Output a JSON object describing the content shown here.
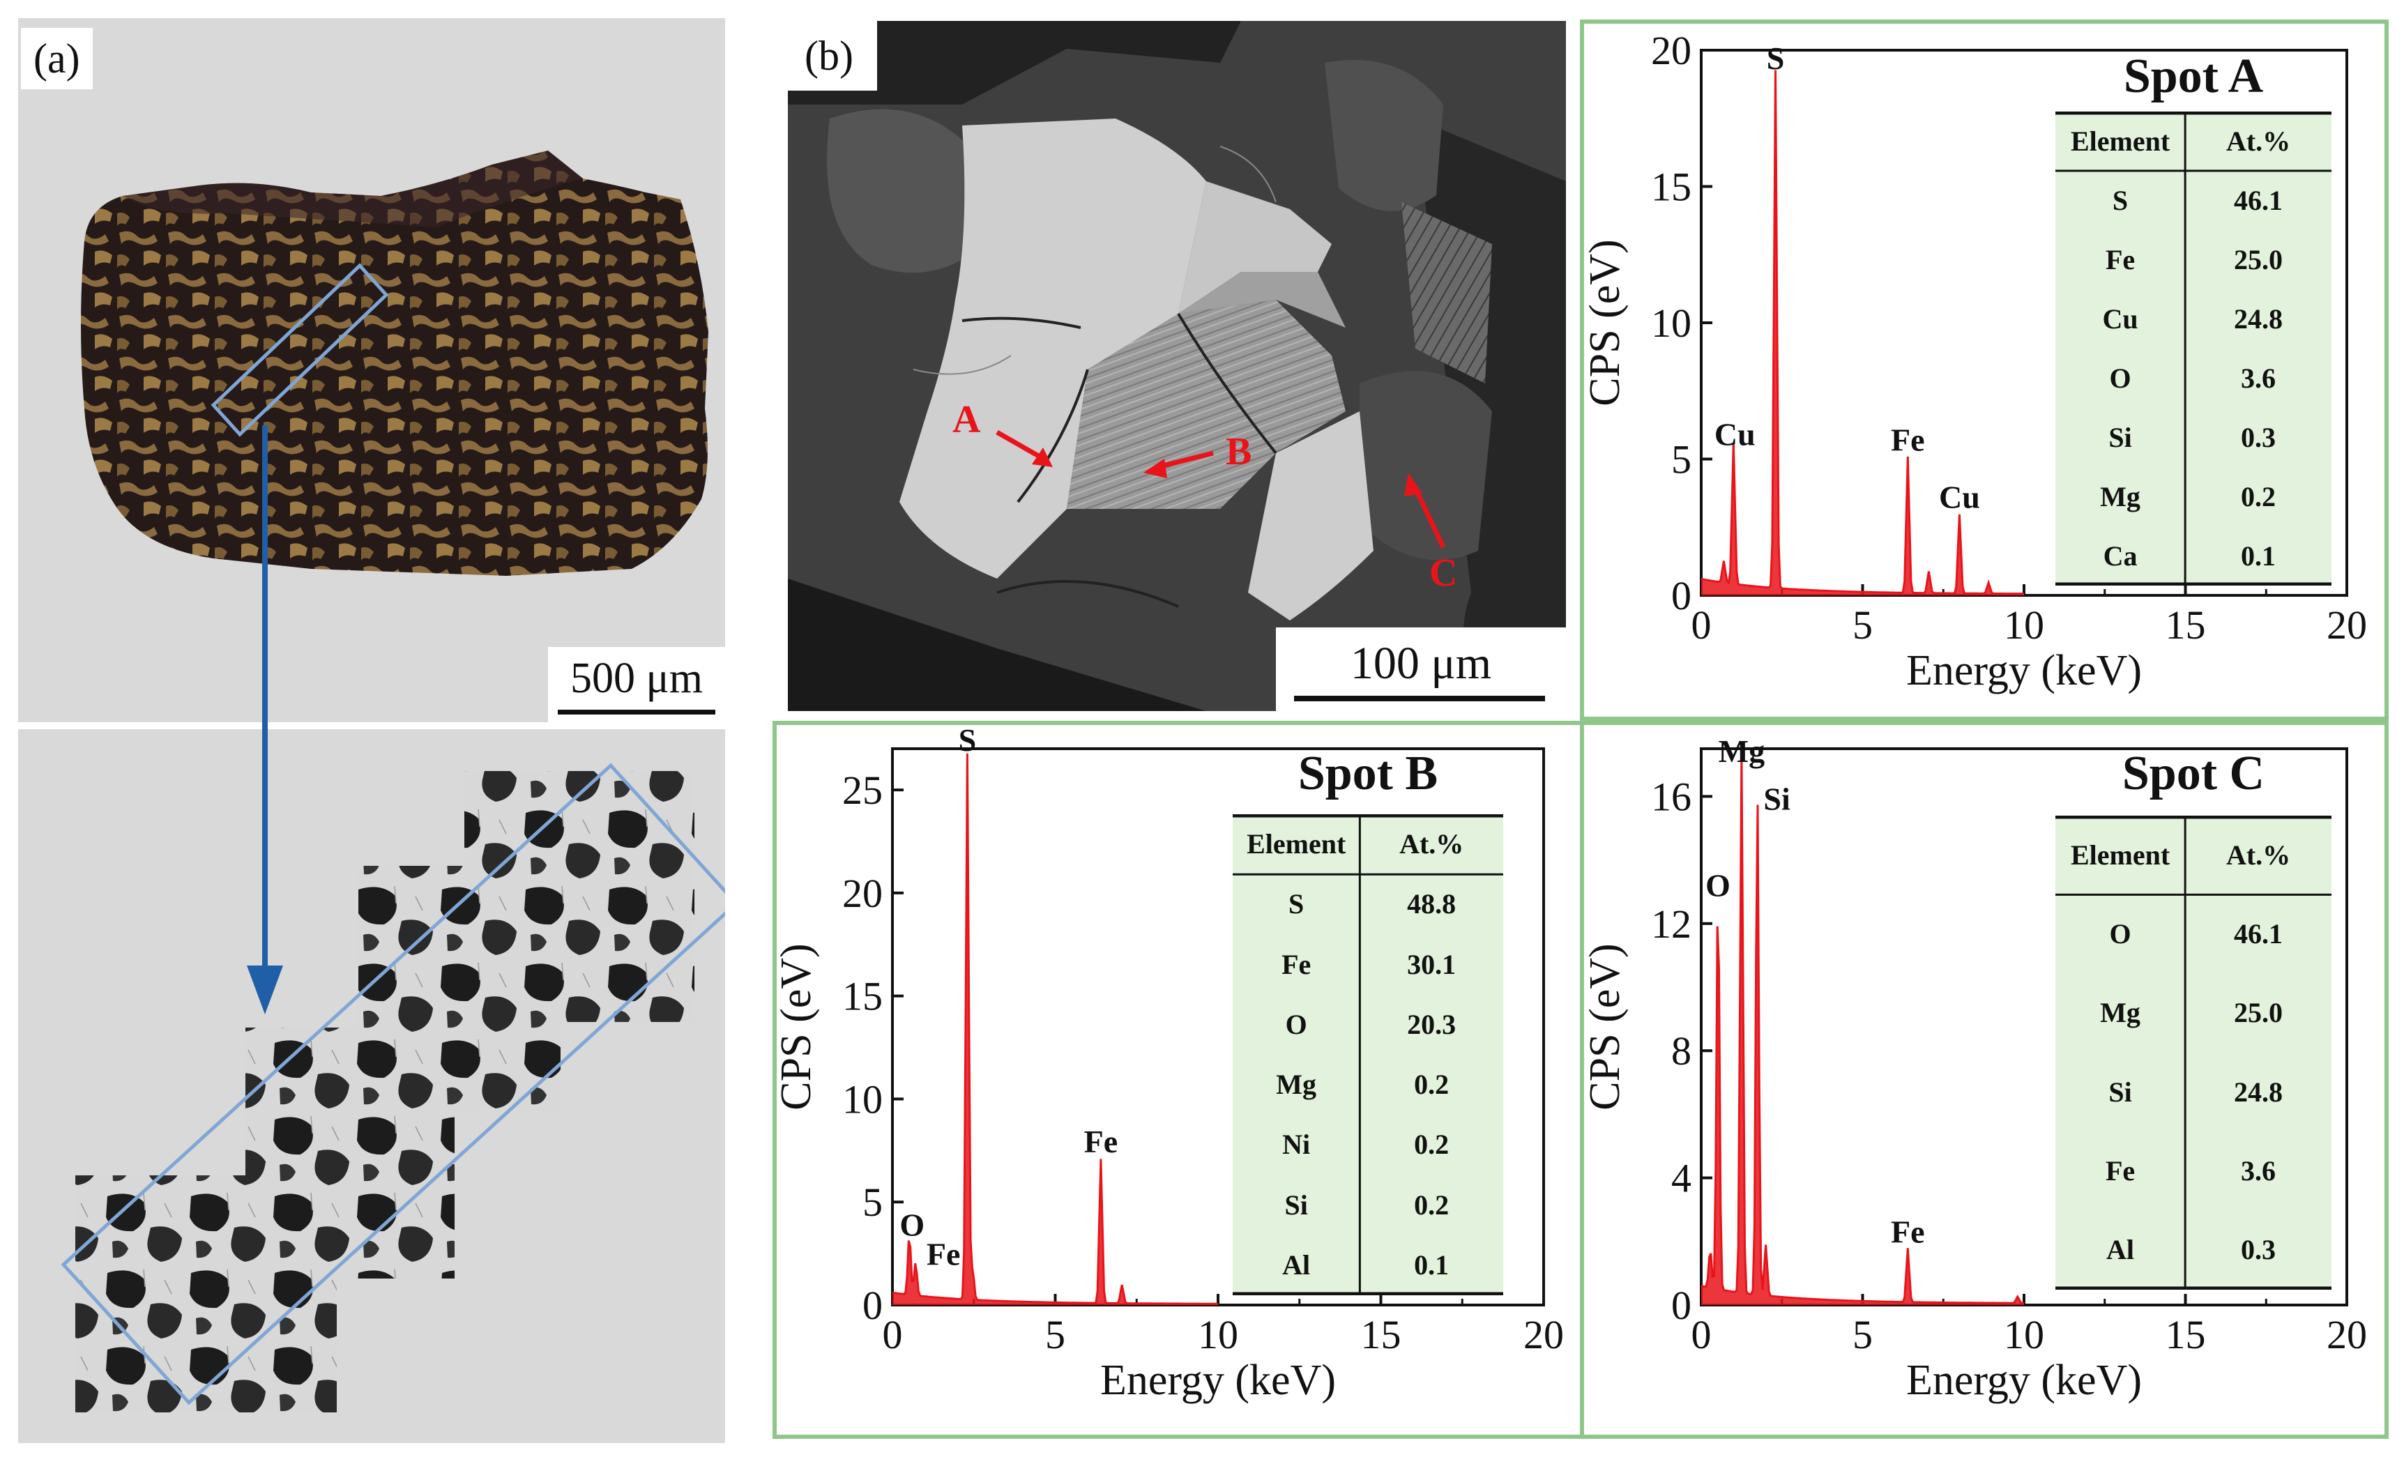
{
  "panels": {
    "a_label": "(a)",
    "b_label": "(b)",
    "a_scale": "500 μm",
    "b_scale": "100 μm"
  },
  "sem_markers": [
    {
      "label": "A",
      "tag": "A"
    },
    {
      "label": "B",
      "tag": "B"
    },
    {
      "label": "C",
      "tag": "C"
    }
  ],
  "colors": {
    "spectrum": "#e8141a",
    "frame_green": "#8fc78a",
    "table_fill": "#e3f2dc",
    "selection_blue": "#7fa6d6",
    "arrow_blue": "#1f5fa8",
    "marker_red": "#e8141a"
  },
  "chart_data": [
    {
      "type": "line",
      "title": "Spot A",
      "xlabel": "Energy (keV)",
      "ylabel": "CPS (eV)",
      "xlim": [
        0,
        20
      ],
      "ylim": [
        0,
        20
      ],
      "xticks": [
        "0",
        "5",
        "10",
        "15",
        "20"
      ],
      "yticks": [
        "0",
        "5",
        "10",
        "15",
        "20"
      ],
      "peaks": [
        {
          "label": "Cu",
          "x": 1.0,
          "y": 5.2
        },
        {
          "label": "S",
          "x": 2.3,
          "y": 19.0
        },
        {
          "label": "Fe",
          "x": 6.4,
          "y": 5.0
        },
        {
          "label": "Cu",
          "x": 8.0,
          "y": 2.9
        }
      ],
      "minor_peaks": [
        {
          "x": 0.7,
          "y": 0.8
        },
        {
          "x": 7.05,
          "y": 0.8
        },
        {
          "x": 8.9,
          "y": 0.4
        }
      ],
      "table_header": [
        "Element",
        "At.%"
      ],
      "table_rows": [
        [
          "S",
          "46.1"
        ],
        [
          "Fe",
          "25.0"
        ],
        [
          "Cu",
          "24.8"
        ],
        [
          "O",
          "3.6"
        ],
        [
          "Si",
          "0.3"
        ],
        [
          "Mg",
          "0.2"
        ],
        [
          "Ca",
          "0.1"
        ]
      ]
    },
    {
      "type": "line",
      "title": "Spot B",
      "xlabel": "Energy (keV)",
      "ylabel": "CPS (eV)",
      "xlim": [
        0,
        20
      ],
      "ylim": [
        0,
        27
      ],
      "xticks": [
        "0",
        "5",
        "10",
        "15",
        "20"
      ],
      "yticks": [
        "0",
        "5",
        "10",
        "15",
        "20",
        "25"
      ],
      "peaks": [
        {
          "label": "O",
          "x": 0.52,
          "y": 2.9
        },
        {
          "label": "Fe",
          "x": 0.71,
          "y": 1.6
        },
        {
          "label": "S",
          "x": 2.3,
          "y": 26.5
        },
        {
          "label": "Fe",
          "x": 6.4,
          "y": 7.0
        }
      ],
      "minor_peaks": [
        {
          "x": 7.05,
          "y": 0.9
        },
        {
          "x": 2.46,
          "y": 1.5
        }
      ],
      "table_header": [
        "Element",
        "At.%"
      ],
      "table_rows": [
        [
          "S",
          "48.8"
        ],
        [
          "Fe",
          "30.1"
        ],
        [
          "O",
          "20.3"
        ],
        [
          "Mg",
          "0.2"
        ],
        [
          "Ni",
          "0.2"
        ],
        [
          "Si",
          "0.2"
        ],
        [
          "Al",
          "0.1"
        ]
      ]
    },
    {
      "type": "line",
      "title": "Spot C",
      "xlabel": "Energy (keV)",
      "ylabel": "CPS (eV)",
      "xlim": [
        0,
        20
      ],
      "ylim": [
        0,
        17.5
      ],
      "xticks": [
        "0",
        "5",
        "10",
        "15",
        "20"
      ],
      "yticks": [
        "0",
        "4",
        "8",
        "12",
        "16"
      ],
      "peaks": [
        {
          "label": "O",
          "x": 0.52,
          "y": 12.6
        },
        {
          "label": "Mg",
          "x": 1.25,
          "y": 17.0
        },
        {
          "label": "Si",
          "x": 1.74,
          "y": 15.8
        },
        {
          "label": "Fe",
          "x": 6.4,
          "y": 1.7
        }
      ],
      "minor_peaks": [
        {
          "x": 2.0,
          "y": 1.6
        },
        {
          "x": 0.28,
          "y": 1.2
        },
        {
          "x": 9.8,
          "y": 0.2
        }
      ],
      "table_header": [
        "Element",
        "At.%"
      ],
      "table_rows": [
        [
          "O",
          "46.1"
        ],
        [
          "Mg",
          "25.0"
        ],
        [
          "Si",
          "24.8"
        ],
        [
          "Fe",
          "3.6"
        ],
        [
          "Al",
          "0.3"
        ]
      ]
    }
  ]
}
